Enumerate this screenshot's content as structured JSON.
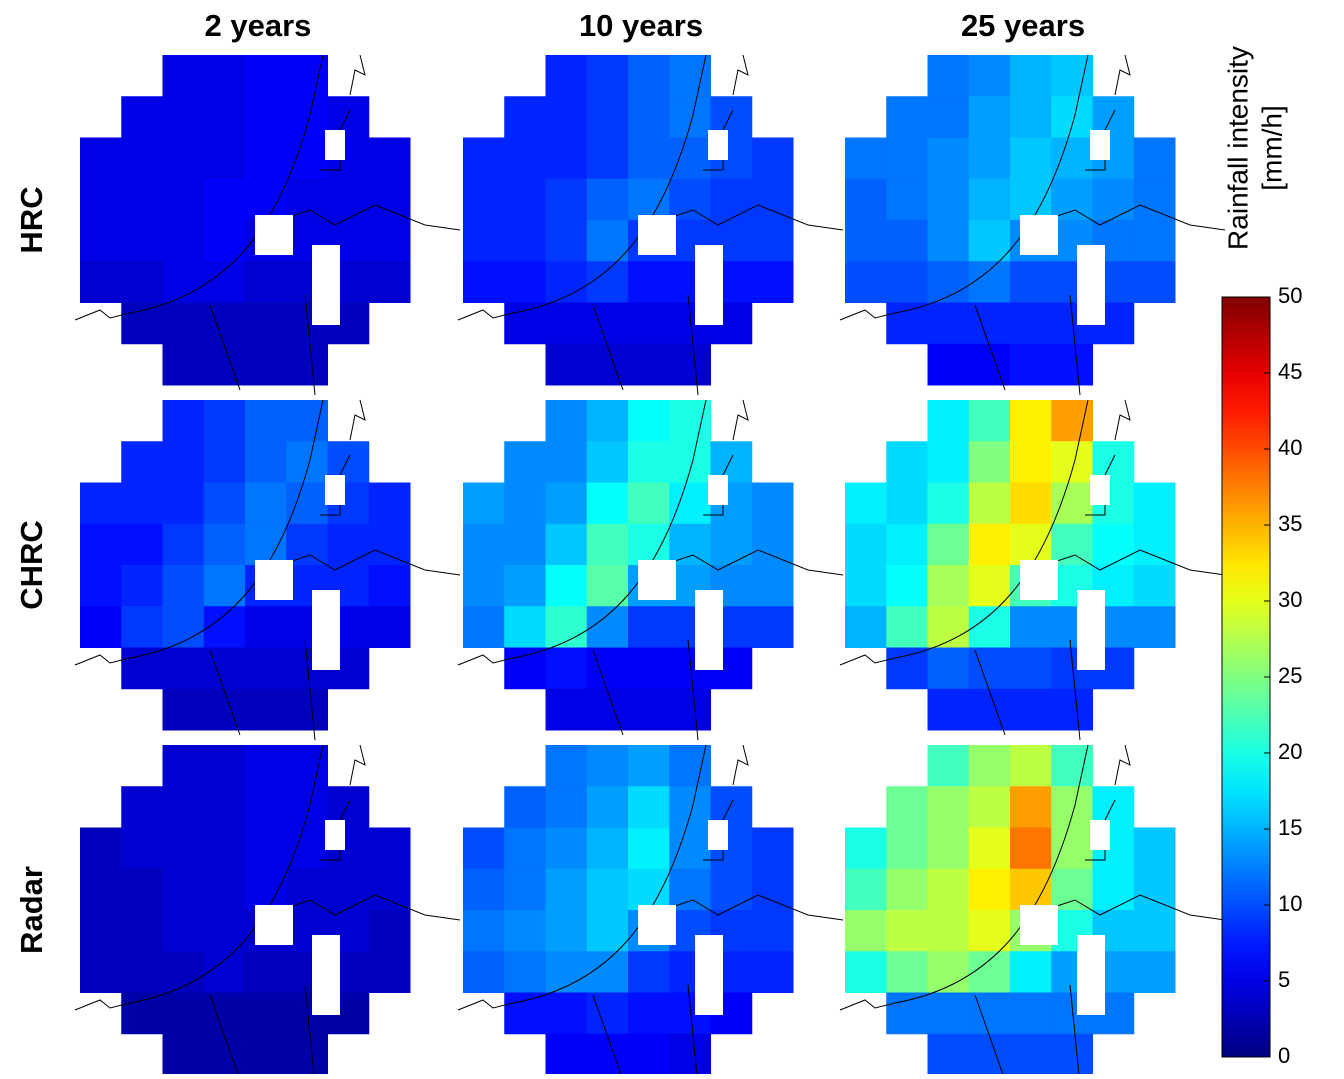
{
  "chart_data": {
    "type": "heatmap",
    "colormap": "jet",
    "columns": [
      "2 years",
      "10 years",
      "25 years"
    ],
    "rows": [
      "HRC",
      "CHRC",
      "Radar"
    ],
    "panels": [
      {
        "values": [
          [
            null,
            null,
            5,
            5,
            6,
            6,
            null,
            null
          ],
          [
            null,
            5,
            5,
            5,
            6,
            6,
            5,
            null
          ],
          [
            5,
            5,
            5,
            5,
            6,
            6,
            5,
            5
          ],
          [
            5,
            5,
            5,
            6,
            6,
            5,
            5,
            5
          ],
          [
            5,
            5,
            5,
            6,
            5,
            5,
            5,
            5
          ],
          [
            4,
            4,
            5,
            5,
            4,
            4,
            4,
            4
          ],
          [
            null,
            3,
            3,
            3,
            3,
            3,
            3,
            null
          ],
          [
            null,
            null,
            3,
            3,
            3,
            3,
            null,
            null
          ]
        ]
      },
      {
        "values": [
          [
            null,
            null,
            8,
            9,
            11,
            12,
            null,
            null
          ],
          [
            null,
            8,
            8,
            9,
            11,
            12,
            10,
            null
          ],
          [
            8,
            8,
            8,
            9,
            11,
            11,
            10,
            9
          ],
          [
            8,
            8,
            9,
            11,
            12,
            10,
            9,
            9
          ],
          [
            8,
            8,
            9,
            12,
            9,
            9,
            9,
            9
          ],
          [
            7,
            7,
            8,
            9,
            7,
            7,
            7,
            7
          ],
          [
            null,
            5,
            5,
            5,
            5,
            5,
            5,
            null
          ],
          [
            null,
            null,
            4,
            4,
            4,
            4,
            null,
            null
          ]
        ]
      },
      {
        "values": [
          [
            null,
            null,
            12,
            13,
            15,
            16,
            null,
            null
          ],
          [
            null,
            12,
            12,
            14,
            15,
            17,
            14,
            null
          ],
          [
            12,
            12,
            13,
            14,
            16,
            15,
            14,
            12
          ],
          [
            11,
            12,
            13,
            15,
            16,
            14,
            13,
            12
          ],
          [
            11,
            11,
            13,
            16,
            13,
            13,
            12,
            12
          ],
          [
            10,
            10,
            11,
            12,
            10,
            10,
            10,
            10
          ],
          [
            null,
            8,
            8,
            8,
            8,
            8,
            8,
            null
          ],
          [
            null,
            null,
            6,
            6,
            7,
            7,
            null,
            null
          ]
        ]
      },
      {
        "values": [
          [
            null,
            null,
            8,
            9,
            11,
            11,
            null,
            null
          ],
          [
            null,
            8,
            8,
            9,
            11,
            12,
            10,
            null
          ],
          [
            8,
            8,
            8,
            10,
            12,
            11,
            9,
            8
          ],
          [
            7,
            7,
            9,
            11,
            12,
            9,
            8,
            8
          ],
          [
            7,
            8,
            10,
            12,
            8,
            8,
            8,
            7
          ],
          [
            6,
            9,
            10,
            7,
            5,
            5,
            5,
            5
          ],
          [
            null,
            4,
            4,
            4,
            4,
            4,
            4,
            null
          ],
          [
            null,
            null,
            3,
            3,
            3,
            3,
            null,
            null
          ]
        ]
      },
      {
        "values": [
          [
            null,
            null,
            13,
            15,
            19,
            20,
            null,
            null
          ],
          [
            null,
            13,
            13,
            16,
            20,
            20,
            15,
            null
          ],
          [
            14,
            13,
            14,
            19,
            22,
            18,
            14,
            13
          ],
          [
            13,
            13,
            16,
            22,
            20,
            15,
            14,
            13
          ],
          [
            13,
            14,
            19,
            23,
            14,
            14,
            13,
            13
          ],
          [
            12,
            17,
            21,
            13,
            9,
            9,
            9,
            9
          ],
          [
            null,
            6,
            7,
            6,
            6,
            6,
            6,
            null
          ],
          [
            null,
            null,
            5,
            5,
            5,
            5,
            null,
            null
          ]
        ]
      },
      {
        "values": [
          [
            null,
            null,
            18,
            22,
            32,
            36,
            null,
            null
          ],
          [
            null,
            17,
            18,
            25,
            32,
            30,
            20,
            null
          ],
          [
            18,
            17,
            20,
            28,
            33,
            27,
            20,
            18
          ],
          [
            17,
            18,
            24,
            32,
            30,
            22,
            19,
            18
          ],
          [
            17,
            19,
            27,
            30,
            22,
            20,
            18,
            17
          ],
          [
            15,
            22,
            28,
            20,
            13,
            13,
            13,
            13
          ],
          [
            null,
            9,
            11,
            10,
            10,
            9,
            9,
            null
          ],
          [
            null,
            null,
            8,
            8,
            8,
            8,
            null,
            null
          ]
        ]
      },
      {
        "values": [
          [
            null,
            null,
            4,
            4,
            5,
            5,
            null,
            null
          ],
          [
            null,
            4,
            4,
            4,
            5,
            5,
            4,
            null
          ],
          [
            3,
            4,
            4,
            4,
            5,
            5,
            4,
            4
          ],
          [
            3,
            3,
            4,
            4,
            5,
            4,
            4,
            4
          ],
          [
            3,
            3,
            4,
            4,
            4,
            4,
            4,
            3
          ],
          [
            3,
            3,
            3,
            4,
            3,
            3,
            3,
            3
          ],
          [
            null,
            2,
            2,
            2,
            2,
            2,
            2,
            null
          ],
          [
            null,
            null,
            2,
            2,
            2,
            2,
            null,
            null
          ]
        ]
      },
      {
        "values": [
          [
            null,
            null,
            12,
            13,
            14,
            12,
            null,
            null
          ],
          [
            null,
            11,
            12,
            14,
            17,
            13,
            10,
            null
          ],
          [
            10,
            12,
            13,
            15,
            18,
            13,
            10,
            9
          ],
          [
            11,
            12,
            14,
            16,
            17,
            12,
            10,
            9
          ],
          [
            12,
            13,
            14,
            16,
            13,
            10,
            9,
            9
          ],
          [
            11,
            12,
            13,
            13,
            9,
            8,
            8,
            8
          ],
          [
            null,
            7,
            7,
            8,
            7,
            7,
            6,
            null
          ],
          [
            null,
            null,
            6,
            6,
            6,
            5,
            null,
            null
          ]
        ]
      },
      {
        "values": [
          [
            null,
            null,
            22,
            26,
            28,
            22,
            null,
            null
          ],
          [
            null,
            24,
            26,
            28,
            36,
            26,
            18,
            null
          ],
          [
            20,
            24,
            26,
            30,
            38,
            26,
            18,
            16
          ],
          [
            22,
            26,
            28,
            32,
            34,
            24,
            18,
            16
          ],
          [
            26,
            28,
            28,
            30,
            26,
            20,
            16,
            16
          ],
          [
            20,
            24,
            26,
            24,
            18,
            14,
            14,
            14
          ],
          [
            null,
            12,
            12,
            12,
            12,
            12,
            12,
            null
          ],
          [
            null,
            null,
            10,
            10,
            10,
            10,
            null,
            null
          ]
        ]
      }
    ],
    "colorbar": {
      "label": [
        "Rainfall intensity",
        "[mm/h]"
      ],
      "lim": [
        0,
        50
      ],
      "ticks": [
        0,
        5,
        10,
        15,
        20,
        25,
        30,
        35,
        40,
        45,
        50
      ]
    }
  }
}
